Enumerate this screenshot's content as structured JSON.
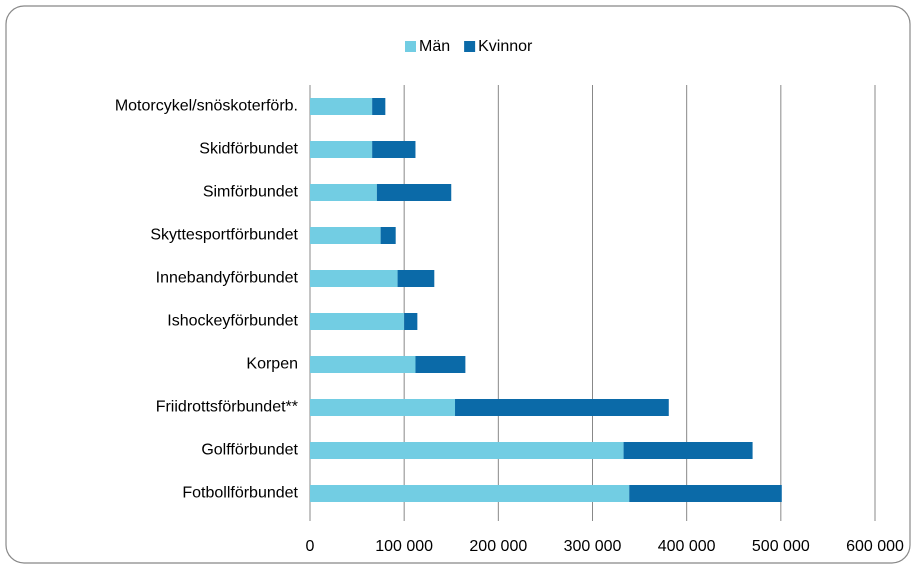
{
  "chart_data": {
    "type": "stacked_barh",
    "categories": [
      "Motorcykel/snöskoterförb.",
      "Skidförbundet",
      "Simförbundet",
      "Skyttesportförbundet",
      "Innebandyförbundet",
      "Ishockeyförbundet",
      "Korpen",
      "Friidrottsförbundet**",
      "Golfförbundet",
      "Fotbollförbundet"
    ],
    "series": [
      {
        "name": "Män",
        "color": "#72cde3",
        "values": [
          66000,
          66000,
          71000,
          75000,
          93000,
          100000,
          112000,
          154000,
          333000,
          339000
        ]
      },
      {
        "name": "Kvinnor",
        "color": "#0b6aa8",
        "values": [
          14000,
          46000,
          79000,
          16000,
          39000,
          14000,
          53000,
          227000,
          137000,
          162000
        ]
      }
    ],
    "xlim": [
      0,
      600000
    ],
    "xticks": [
      0,
      {
        "value": 100000,
        "label": "100 000"
      },
      {
        "value": 200000,
        "label": "200 000"
      },
      {
        "value": 300000,
        "label": "300 000"
      },
      {
        "value": 400000,
        "label": "400 000"
      },
      {
        "value": 500000,
        "label": "500 000"
      },
      {
        "value": 600000,
        "label": "600 000"
      }
    ],
    "grid": true,
    "legend": "top"
  }
}
